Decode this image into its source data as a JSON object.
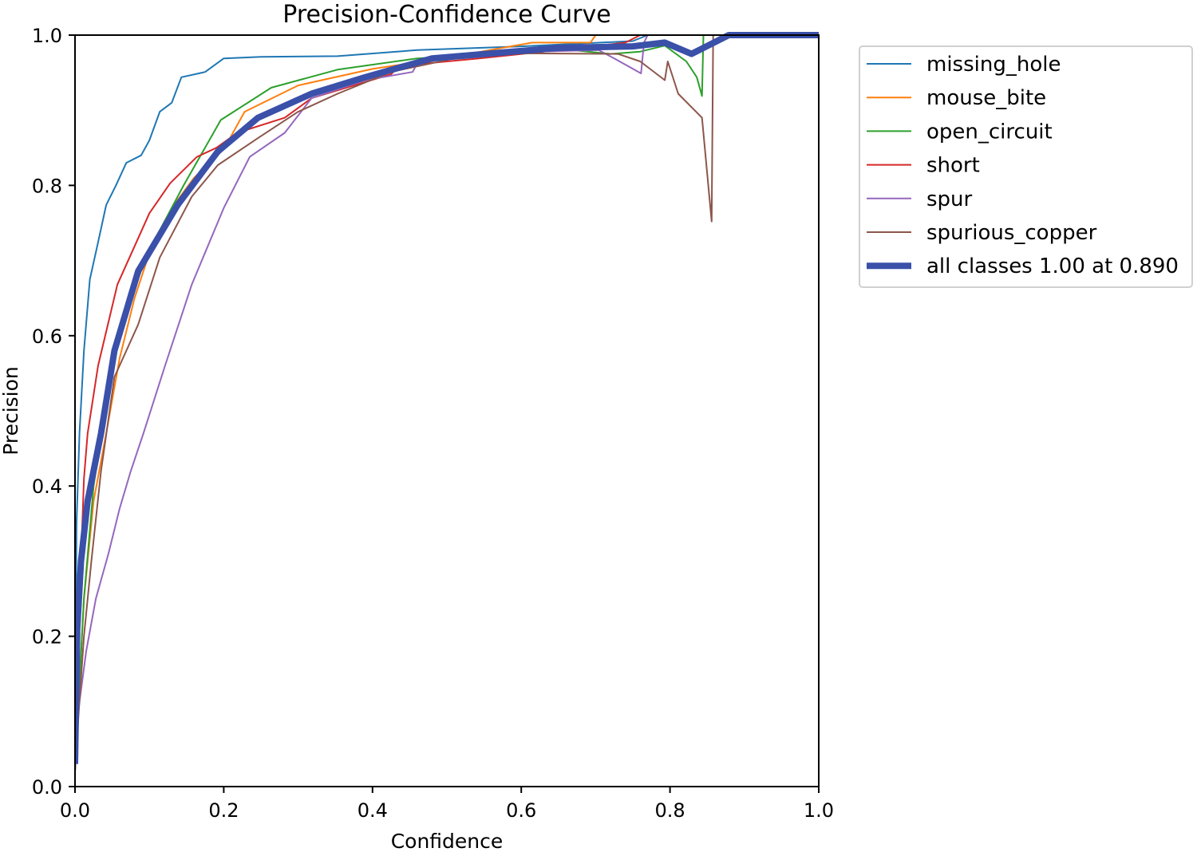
{
  "chart_data": {
    "type": "line",
    "title": "Precision-Confidence Curve",
    "xlabel": "Confidence",
    "ylabel": "Precision",
    "xlim": [
      0,
      1
    ],
    "ylim": [
      0,
      1
    ],
    "xticks": [
      "0.0",
      "0.2",
      "0.4",
      "0.6",
      "0.8",
      "1.0"
    ],
    "yticks": [
      "0.0",
      "0.2",
      "0.4",
      "0.6",
      "0.8",
      "1.0"
    ],
    "grid": false,
    "legend_position": "outside-top-right",
    "series": [
      {
        "name": "missing_hole",
        "color": "#1f77b4",
        "thick": false,
        "points": [
          [
            0,
            0.05
          ],
          [
            0.002,
            0.35
          ],
          [
            0.006,
            0.47
          ],
          [
            0.012,
            0.58
          ],
          [
            0.02,
            0.675
          ],
          [
            0.03,
            0.72
          ],
          [
            0.042,
            0.774
          ],
          [
            0.055,
            0.8
          ],
          [
            0.069,
            0.83
          ],
          [
            0.089,
            0.84
          ],
          [
            0.1,
            0.86
          ],
          [
            0.114,
            0.898
          ],
          [
            0.13,
            0.91
          ],
          [
            0.143,
            0.944
          ],
          [
            0.175,
            0.951
          ],
          [
            0.2,
            0.969
          ],
          [
            0.25,
            0.971
          ],
          [
            0.353,
            0.972
          ],
          [
            0.46,
            0.98
          ],
          [
            0.6,
            0.985
          ],
          [
            0.75,
            0.992
          ],
          [
            0.77,
            1.0
          ],
          [
            1.0,
            1.0
          ]
        ]
      },
      {
        "name": "mouse_bite",
        "color": "#ff7f0e",
        "thick": false,
        "points": [
          [
            0,
            0.02
          ],
          [
            0.005,
            0.12
          ],
          [
            0.012,
            0.25
          ],
          [
            0.025,
            0.38
          ],
          [
            0.042,
            0.47
          ],
          [
            0.06,
            0.57
          ],
          [
            0.08,
            0.65
          ],
          [
            0.1,
            0.71
          ],
          [
            0.13,
            0.77
          ],
          [
            0.16,
            0.81
          ],
          [
            0.2,
            0.848
          ],
          [
            0.228,
            0.898
          ],
          [
            0.3,
            0.933
          ],
          [
            0.4,
            0.955
          ],
          [
            0.5,
            0.97
          ],
          [
            0.615,
            0.99
          ],
          [
            0.693,
            0.99
          ],
          [
            0.7,
            1.0
          ],
          [
            1.0,
            1.0
          ]
        ]
      },
      {
        "name": "open_circuit",
        "color": "#2ca02c",
        "thick": false,
        "points": [
          [
            0,
            0.02
          ],
          [
            0.005,
            0.12
          ],
          [
            0.012,
            0.25
          ],
          [
            0.025,
            0.4
          ],
          [
            0.045,
            0.53
          ],
          [
            0.067,
            0.633
          ],
          [
            0.103,
            0.72
          ],
          [
            0.146,
            0.8
          ],
          [
            0.196,
            0.887
          ],
          [
            0.264,
            0.93
          ],
          [
            0.353,
            0.954
          ],
          [
            0.46,
            0.969
          ],
          [
            0.6,
            0.978
          ],
          [
            0.668,
            0.98
          ],
          [
            0.72,
            0.975
          ],
          [
            0.76,
            0.978
          ],
          [
            0.793,
            0.986
          ],
          [
            0.822,
            0.965
          ],
          [
            0.836,
            0.944
          ],
          [
            0.843,
            0.919
          ],
          [
            0.845,
            1.0
          ],
          [
            1.0,
            1.0
          ]
        ]
      },
      {
        "name": "short",
        "color": "#d62728",
        "thick": false,
        "points": [
          [
            0,
            0.03
          ],
          [
            0.003,
            0.14
          ],
          [
            0.008,
            0.3
          ],
          [
            0.012,
            0.41
          ],
          [
            0.017,
            0.47
          ],
          [
            0.031,
            0.56
          ],
          [
            0.057,
            0.668
          ],
          [
            0.1,
            0.763
          ],
          [
            0.128,
            0.803
          ],
          [
            0.164,
            0.838
          ],
          [
            0.19,
            0.85
          ],
          [
            0.218,
            0.87
          ],
          [
            0.282,
            0.89
          ],
          [
            0.318,
            0.916
          ],
          [
            0.425,
            0.948
          ],
          [
            0.436,
            0.959
          ],
          [
            0.543,
            0.969
          ],
          [
            0.65,
            0.98
          ],
          [
            0.74,
            0.99
          ],
          [
            0.76,
            1.0
          ],
          [
            1.0,
            1.0
          ]
        ]
      },
      {
        "name": "spur",
        "color": "#9467bd",
        "thick": false,
        "points": [
          [
            0,
            0.03
          ],
          [
            0.003,
            0.09
          ],
          [
            0.015,
            0.18
          ],
          [
            0.028,
            0.25
          ],
          [
            0.045,
            0.31
          ],
          [
            0.06,
            0.37
          ],
          [
            0.075,
            0.42
          ],
          [
            0.092,
            0.47
          ],
          [
            0.121,
            0.56
          ],
          [
            0.157,
            0.668
          ],
          [
            0.2,
            0.77
          ],
          [
            0.235,
            0.838
          ],
          [
            0.282,
            0.87
          ],
          [
            0.318,
            0.916
          ],
          [
            0.39,
            0.94
          ],
          [
            0.454,
            0.951
          ],
          [
            0.46,
            0.962
          ],
          [
            0.543,
            0.976
          ],
          [
            0.704,
            0.98
          ],
          [
            0.725,
            0.969
          ],
          [
            0.761,
            0.949
          ],
          [
            0.765,
            0.99
          ],
          [
            0.77,
            1.0
          ],
          [
            1.0,
            1.0
          ]
        ]
      },
      {
        "name": "spurious_copper",
        "color": "#8c564b",
        "thick": false,
        "points": [
          [
            0,
            0.02
          ],
          [
            0.005,
            0.1
          ],
          [
            0.012,
            0.2
          ],
          [
            0.022,
            0.3
          ],
          [
            0.035,
            0.42
          ],
          [
            0.053,
            0.545
          ],
          [
            0.085,
            0.615
          ],
          [
            0.114,
            0.704
          ],
          [
            0.157,
            0.785
          ],
          [
            0.192,
            0.827
          ],
          [
            0.246,
            0.863
          ],
          [
            0.3,
            0.898
          ],
          [
            0.353,
            0.922
          ],
          [
            0.425,
            0.951
          ],
          [
            0.543,
            0.976
          ],
          [
            0.73,
            0.975
          ],
          [
            0.76,
            0.965
          ],
          [
            0.793,
            0.94
          ],
          [
            0.797,
            0.965
          ],
          [
            0.811,
            0.922
          ],
          [
            0.843,
            0.89
          ],
          [
            0.856,
            0.752
          ],
          [
            0.858,
            1.0
          ],
          [
            1.0,
            1.0
          ]
        ]
      },
      {
        "name": "all classes 1.00 at 0.890",
        "color": "#3a50a9",
        "thick": true,
        "points": [
          [
            0,
            0.03
          ],
          [
            0.003,
            0.21
          ],
          [
            0.008,
            0.3
          ],
          [
            0.017,
            0.38
          ],
          [
            0.035,
            0.47
          ],
          [
            0.053,
            0.58
          ],
          [
            0.085,
            0.686
          ],
          [
            0.138,
            0.774
          ],
          [
            0.192,
            0.845
          ],
          [
            0.246,
            0.89
          ],
          [
            0.318,
            0.922
          ],
          [
            0.39,
            0.944
          ],
          [
            0.48,
            0.969
          ],
          [
            0.65,
            0.983
          ],
          [
            0.75,
            0.985
          ],
          [
            0.793,
            0.99
          ],
          [
            0.829,
            0.975
          ],
          [
            0.879,
            1.0
          ],
          [
            1.0,
            1.0
          ]
        ]
      }
    ]
  }
}
